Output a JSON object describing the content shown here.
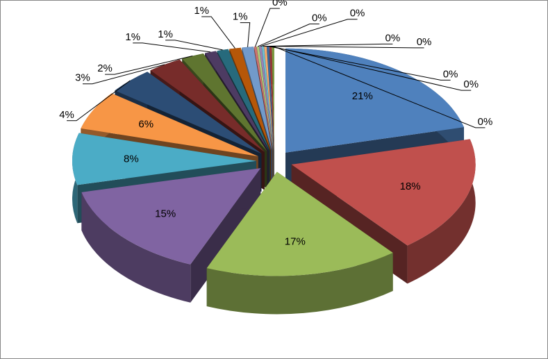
{
  "chart_data": {
    "type": "pie",
    "values": [
      21,
      18,
      17,
      15,
      8,
      6,
      4,
      3,
      2,
      1,
      1,
      1,
      1,
      0.2,
      0.2,
      0.2,
      0.2,
      0.2,
      0.2,
      0.2,
      0.2
    ],
    "value_labels": [
      "21%",
      "18%",
      "17%",
      "15%",
      "8%",
      "6%",
      "4%",
      "3%",
      "2%",
      "1%",
      "1%",
      "1%",
      "1%",
      "0%",
      "0%",
      "0%",
      "0%",
      "0%",
      "0%",
      "0%",
      "0%"
    ],
    "colors": [
      "#4f81bd",
      "#c0504d",
      "#9bbb59",
      "#8064a2",
      "#4bacc6",
      "#f79646",
      "#2c4d75",
      "#772c2a",
      "#5f7530",
      "#4d3b62",
      "#276a7c",
      "#b65708",
      "#729aca",
      "#cd7371",
      "#afc97a",
      "#9983b5",
      "#6fbdd1",
      "#f9ab6b",
      "#3a679c",
      "#9c3a38",
      "#7d9c40"
    ]
  }
}
